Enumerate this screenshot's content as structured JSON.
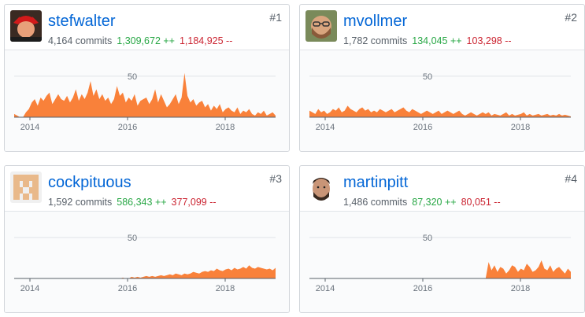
{
  "contributors": [
    {
      "login": "stefwalter",
      "commits": "4,164 commits",
      "additions": "1,309,672 ++",
      "deletions": "1,184,925 --",
      "rank": "#1",
      "avatar_icon": "red-hat-avatar-icon"
    },
    {
      "login": "mvollmer",
      "commits": "1,782 commits",
      "additions": "134,045 ++",
      "deletions": "103,298 --",
      "rank": "#2",
      "avatar_icon": "bearded-face-avatar-icon"
    },
    {
      "login": "cockpituous",
      "commits": "1,592 commits",
      "additions": "586,343 ++",
      "deletions": "377,099 --",
      "rank": "#3",
      "avatar_icon": "identicon-avatar-icon"
    },
    {
      "login": "martinpitt",
      "commits": "1,486 commits",
      "additions": "87,320 ++",
      "deletions": "80,051 --",
      "rank": "#4",
      "avatar_icon": "face-avatar-icon"
    }
  ],
  "chart_data": {
    "type": "area",
    "x_ticks": [
      "2014",
      "2016",
      "2018"
    ],
    "y_tick": "50",
    "ylim": [
      0,
      70
    ],
    "color": "#f9813a",
    "series": [
      {
        "values": [
          4,
          2,
          0,
          0,
          6,
          10,
          18,
          22,
          14,
          24,
          20,
          26,
          30,
          16,
          22,
          28,
          22,
          20,
          26,
          18,
          24,
          34,
          20,
          28,
          22,
          30,
          44,
          26,
          34,
          22,
          28,
          20,
          24,
          16,
          22,
          38,
          26,
          30,
          18,
          24,
          20,
          28,
          14,
          20,
          22,
          24,
          16,
          22,
          34,
          18,
          28,
          20,
          12,
          16,
          22,
          28,
          16,
          24,
          54,
          26,
          18,
          22,
          14,
          18,
          20,
          12,
          16,
          8,
          14,
          10,
          16,
          6,
          10,
          12,
          8,
          6,
          12,
          4,
          8,
          6,
          10,
          4,
          2,
          6,
          4,
          8,
          2,
          4,
          6,
          2
        ]
      },
      {
        "values": [
          8,
          6,
          4,
          10,
          6,
          8,
          4,
          6,
          10,
          8,
          12,
          6,
          8,
          14,
          10,
          8,
          6,
          10,
          12,
          8,
          10,
          6,
          8,
          6,
          10,
          8,
          6,
          8,
          10,
          6,
          8,
          10,
          12,
          8,
          6,
          10,
          8,
          6,
          4,
          6,
          8,
          6,
          4,
          6,
          8,
          4,
          6,
          8,
          6,
          4,
          6,
          8,
          4,
          2,
          4,
          6,
          4,
          2,
          4,
          6,
          4,
          6,
          2,
          4,
          3,
          2,
          4,
          6,
          2,
          4,
          2,
          3,
          4,
          6,
          2,
          4,
          2,
          3,
          4,
          2,
          3,
          4,
          2,
          3,
          2,
          4,
          2,
          3,
          2,
          1
        ]
      },
      {
        "values": [
          0,
          0,
          0,
          0,
          0,
          0,
          0,
          0,
          0,
          0,
          0,
          0,
          0,
          0,
          0,
          0,
          0,
          0,
          0,
          0,
          0,
          0,
          0,
          0,
          0,
          0,
          0,
          0,
          0,
          0,
          0,
          0,
          0,
          0,
          0,
          0,
          0,
          1,
          0,
          0,
          2,
          1,
          2,
          1,
          2,
          3,
          2,
          3,
          2,
          3,
          4,
          3,
          4,
          5,
          4,
          6,
          5,
          4,
          6,
          5,
          6,
          8,
          7,
          6,
          8,
          9,
          8,
          10,
          9,
          12,
          10,
          9,
          11,
          12,
          10,
          13,
          11,
          12,
          14,
          12,
          16,
          13,
          12,
          14,
          13,
          12,
          11,
          12,
          10,
          13
        ]
      },
      {
        "values": [
          0,
          0,
          0,
          0,
          0,
          0,
          0,
          0,
          0,
          0,
          0,
          0,
          0,
          0,
          0,
          0,
          0,
          0,
          0,
          0,
          0,
          0,
          0,
          0,
          0,
          0,
          0,
          0,
          0,
          0,
          0,
          0,
          0,
          0,
          0,
          0,
          0,
          0,
          0,
          0,
          0,
          0,
          0,
          0,
          0,
          0,
          0,
          0,
          0,
          0,
          0,
          0,
          0,
          0,
          0,
          0,
          0,
          0,
          0,
          0,
          0,
          20,
          10,
          16,
          8,
          14,
          12,
          6,
          10,
          16,
          14,
          8,
          12,
          10,
          18,
          14,
          8,
          10,
          14,
          22,
          12,
          10,
          16,
          8,
          12,
          14,
          10,
          6,
          12,
          8
        ]
      }
    ]
  }
}
